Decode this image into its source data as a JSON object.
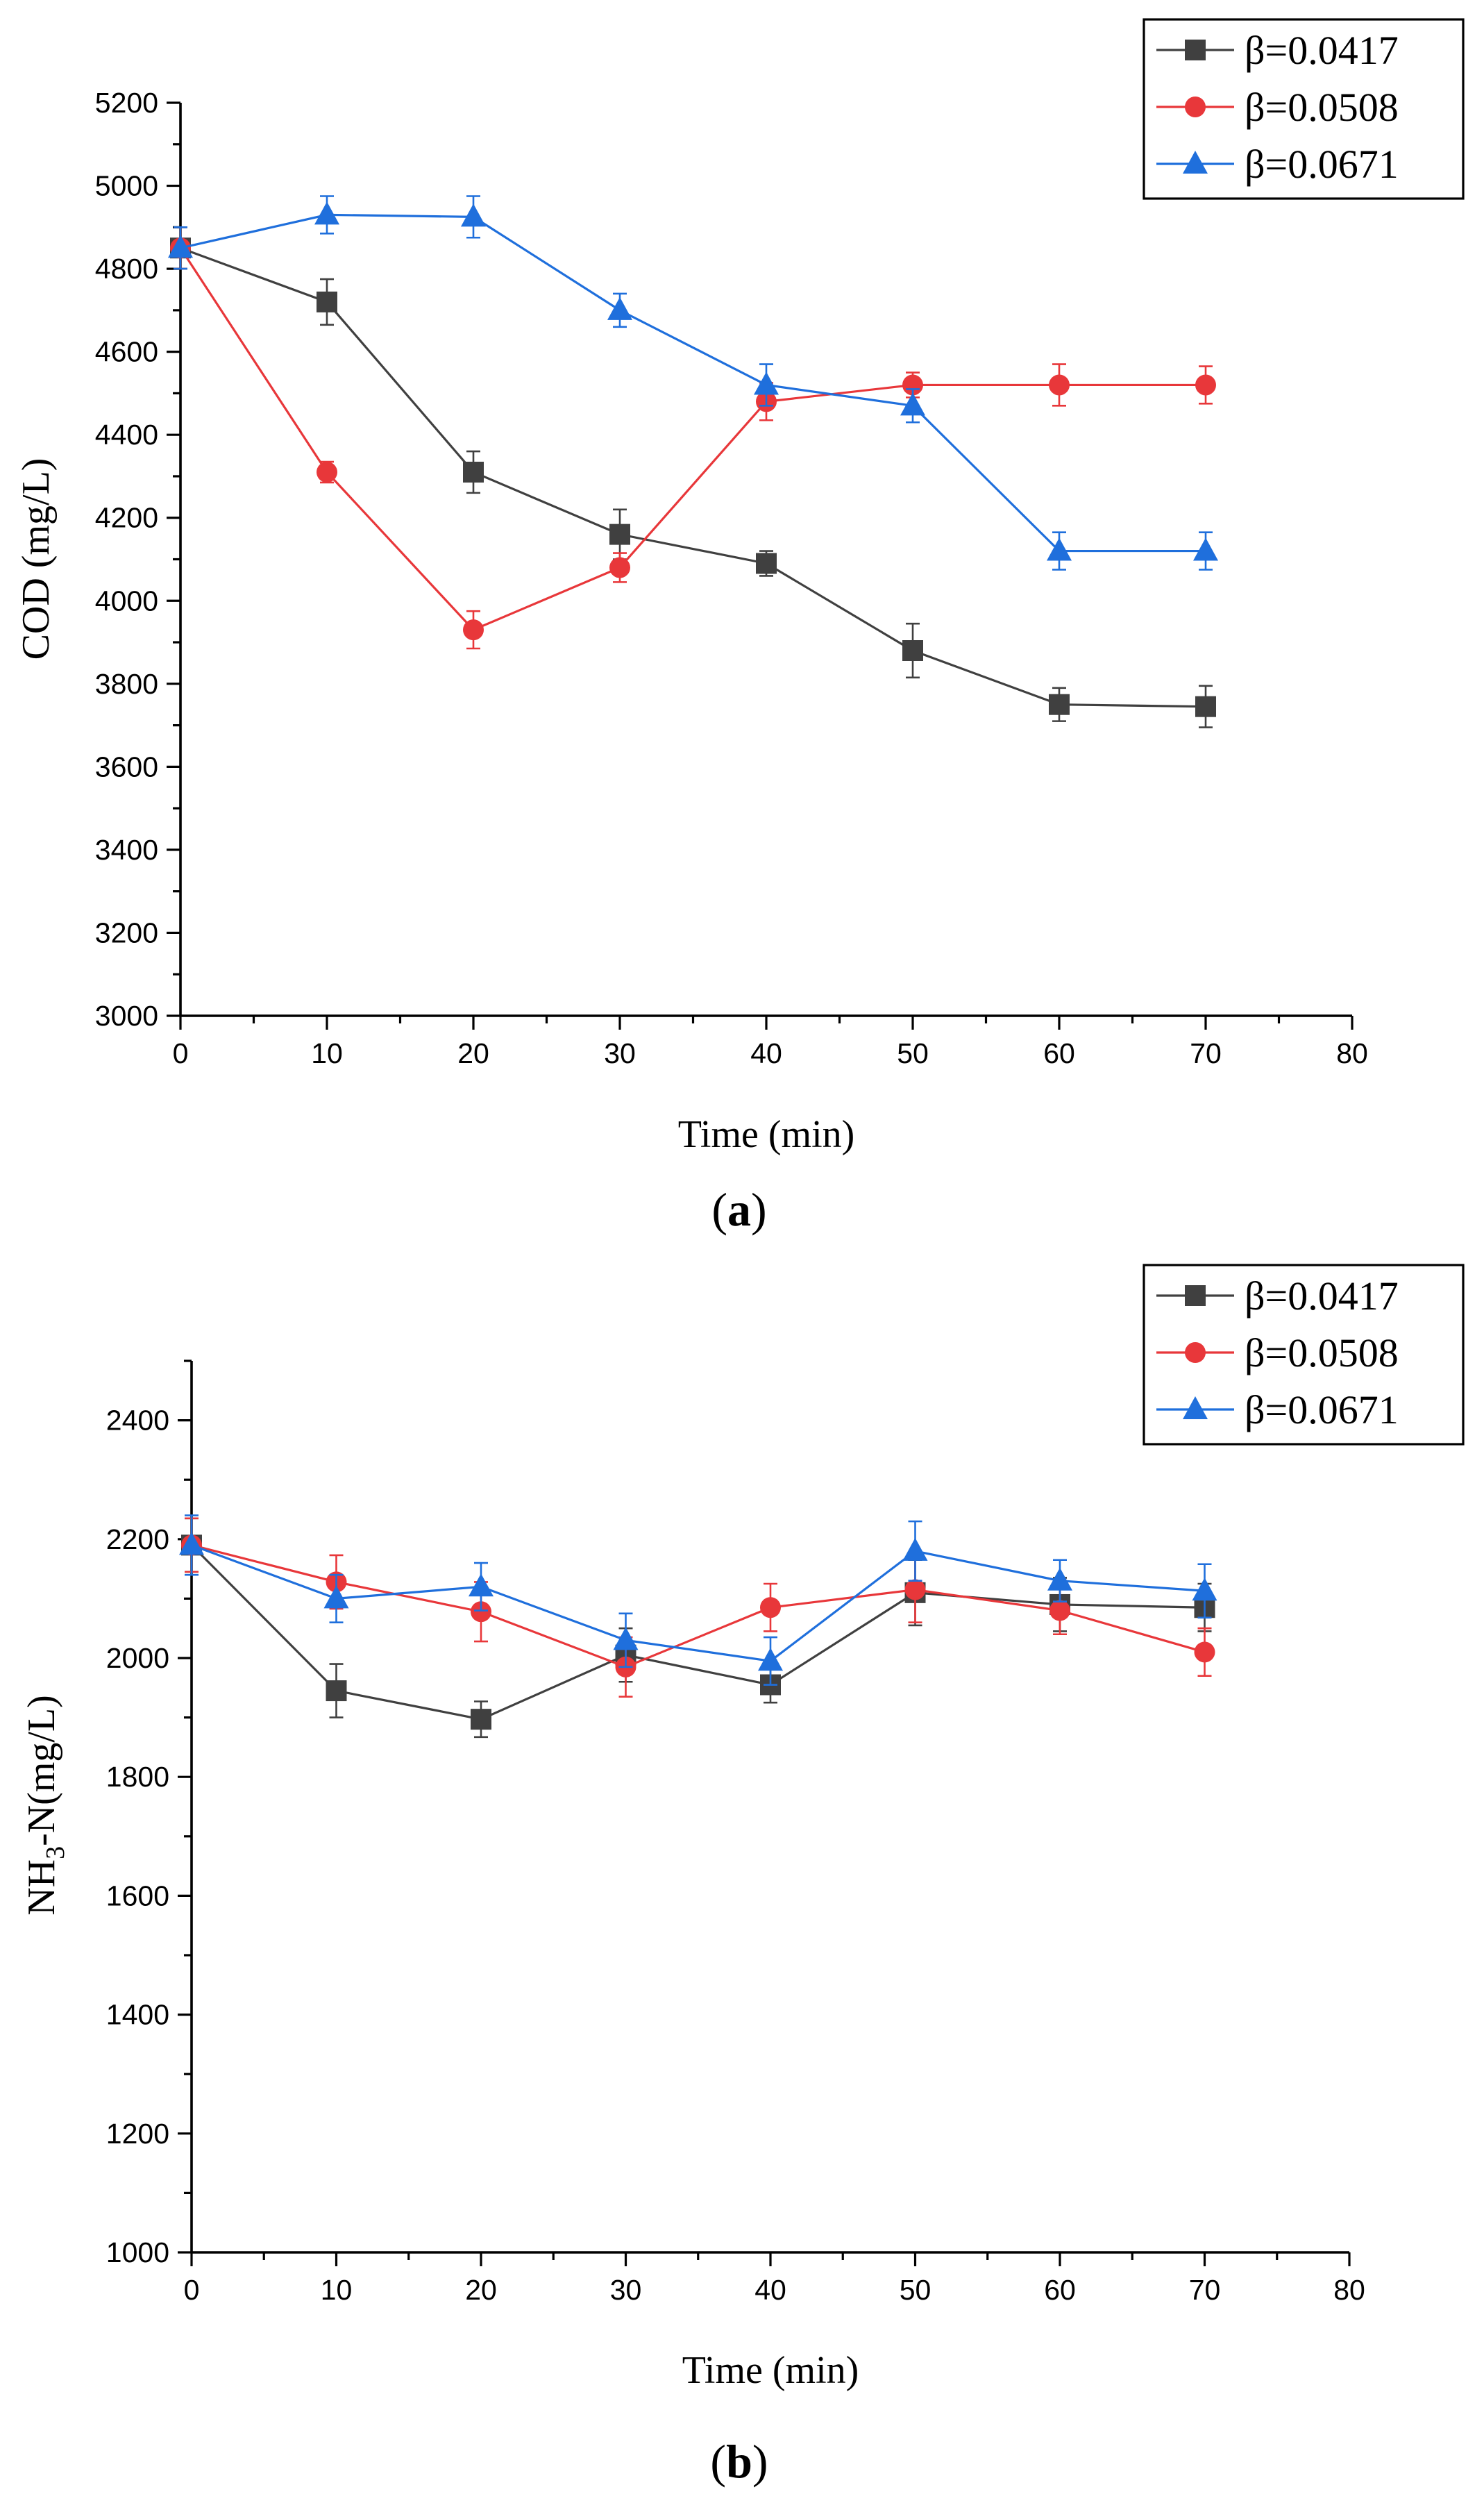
{
  "chart_data": [
    {
      "type": "line",
      "panel_label": "a",
      "xlabel": "Time (min)",
      "ylabel": "COD (mg/L)",
      "xlim": [
        0,
        80
      ],
      "ylim": [
        3000,
        5200
      ],
      "xticks": [
        0,
        10,
        20,
        30,
        40,
        50,
        60,
        70,
        80
      ],
      "yticks": [
        3000,
        3200,
        3400,
        3600,
        3800,
        4000,
        4200,
        4400,
        4600,
        4800,
        5000,
        5200
      ],
      "x": [
        0,
        10,
        20,
        30,
        40,
        50,
        60,
        70
      ],
      "legend_position": "top-right",
      "series": [
        {
          "name": "β=0.0417",
          "color": "#404040",
          "marker": "square",
          "values": [
            4850,
            4720,
            4310,
            4160,
            4090,
            3880,
            3750,
            3745
          ],
          "errors": [
            50,
            55,
            50,
            60,
            30,
            65,
            40,
            50
          ]
        },
        {
          "name": "β=0.0508",
          "color": "#e8373a",
          "marker": "circle",
          "values": [
            4850,
            4310,
            3930,
            4080,
            4480,
            4520,
            4520,
            4520
          ],
          "errors": [
            50,
            25,
            45,
            35,
            45,
            30,
            50,
            45
          ]
        },
        {
          "name": "β=0.0671",
          "color": "#1f6fdc",
          "marker": "triangle",
          "values": [
            4850,
            4930,
            4925,
            4700,
            4520,
            4470,
            4120,
            4120
          ],
          "errors": [
            50,
            45,
            50,
            40,
            50,
            40,
            45,
            45
          ]
        }
      ]
    },
    {
      "type": "line",
      "panel_label": "b",
      "xlabel": "Time (min)",
      "ylabel": "NH3-N(mg/L)",
      "xlim": [
        0,
        80
      ],
      "ylim": [
        1000,
        2500
      ],
      "xticks": [
        0,
        10,
        20,
        30,
        40,
        50,
        60,
        70,
        80
      ],
      "yticks": [
        1000,
        1200,
        1400,
        1600,
        1800,
        2000,
        2200,
        2400
      ],
      "x": [
        0,
        10,
        20,
        30,
        40,
        50,
        60,
        70
      ],
      "legend_position": "top-right",
      "series": [
        {
          "name": "β=0.0417",
          "color": "#404040",
          "marker": "square",
          "values": [
            2190,
            1945,
            1897,
            2005,
            1955,
            2110,
            2090,
            2085
          ],
          "errors": [
            45,
            45,
            30,
            45,
            30,
            55,
            45,
            40
          ]
        },
        {
          "name": "β=0.0508",
          "color": "#e8373a",
          "marker": "circle",
          "values": [
            2190,
            2128,
            2078,
            1985,
            2085,
            2115,
            2080,
            2010
          ],
          "errors": [
            45,
            45,
            50,
            50,
            40,
            55,
            40,
            40
          ]
        },
        {
          "name": "β=0.0671",
          "color": "#1f6fdc",
          "marker": "triangle",
          "values": [
            2190,
            2100,
            2120,
            2030,
            1995,
            2180,
            2130,
            2113
          ],
          "errors": [
            50,
            40,
            40,
            45,
            40,
            50,
            35,
            45
          ]
        }
      ]
    }
  ]
}
